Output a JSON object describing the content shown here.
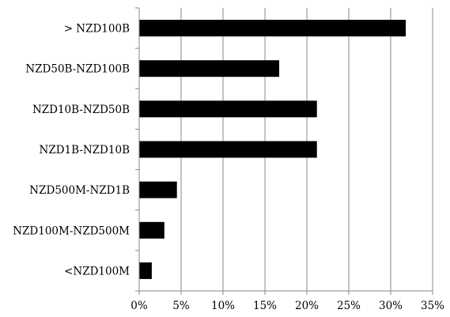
{
  "chart_data": {
    "type": "bar",
    "orientation": "horizontal",
    "categories": [
      "> NZD100B",
      "NZD50B-NZD100B",
      "NZD10B-NZD50B",
      "NZD1B-NZD10B",
      "NZD500M-NZD1B",
      "NZD100M-NZD500M",
      "<NZD100M"
    ],
    "values": [
      31.8,
      16.7,
      21.2,
      21.2,
      4.5,
      3.0,
      1.5
    ],
    "xlim": [
      0,
      35
    ],
    "xticks": [
      0,
      5,
      10,
      15,
      20,
      25,
      30,
      35
    ],
    "xtick_labels": [
      "0%",
      "5%",
      "10%",
      "15%",
      "20%",
      "25%",
      "30%",
      "35%"
    ],
    "grid": "vertical",
    "bar_color": "#000000",
    "grid_color": "#888888",
    "legend": "none",
    "title": "",
    "xlabel": "",
    "ylabel": ""
  }
}
